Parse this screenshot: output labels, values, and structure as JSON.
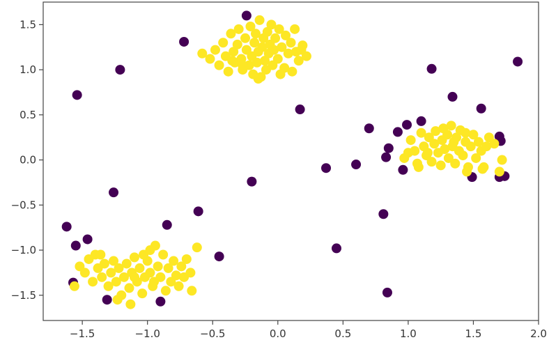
{
  "chart_data": {
    "type": "scatter",
    "title": "",
    "xlabel": "",
    "ylabel": "",
    "xlim": [
      -1.8,
      2.0
    ],
    "ylim": [
      -1.78,
      1.75
    ],
    "grid": false,
    "legend": "none",
    "x_ticks": [
      -1.5,
      -1.0,
      -0.5,
      0.0,
      0.5,
      1.0,
      1.5,
      2.0
    ],
    "x_tick_labels": [
      "−1.5",
      "−1.0",
      "−0.5",
      "0.0",
      "0.5",
      "1.0",
      "1.5",
      "2.0"
    ],
    "y_ticks": [
      1.5,
      1.0,
      0.5,
      0.0,
      -0.5,
      -1.0,
      -1.5
    ],
    "y_tick_labels": [
      "1.5",
      "1.0",
      "0.5",
      "0.0",
      "−0.5",
      "−1.0",
      "−1.5"
    ],
    "colors": {
      "class_0": "#440154",
      "class_1": "#fde725"
    },
    "series": [
      {
        "color": "#440154",
        "points": [
          [
            -0.24,
            1.6
          ],
          [
            -0.72,
            1.31
          ],
          [
            -1.21,
            1.0
          ],
          [
            -1.54,
            0.72
          ],
          [
            0.17,
            0.56
          ],
          [
            1.18,
            1.01
          ],
          [
            1.84,
            1.09
          ],
          [
            1.34,
            0.7
          ],
          [
            1.56,
            0.57
          ],
          [
            0.7,
            0.35
          ],
          [
            0.92,
            0.31
          ],
          [
            0.99,
            0.39
          ],
          [
            1.1,
            0.43
          ],
          [
            0.85,
            0.13
          ],
          [
            0.83,
            0.03
          ],
          [
            0.6,
            -0.05
          ],
          [
            0.37,
            -0.09
          ],
          [
            0.96,
            -0.11
          ],
          [
            1.49,
            -0.19
          ],
          [
            1.7,
            0.26
          ],
          [
            1.71,
            0.21
          ],
          [
            1.7,
            -0.19
          ],
          [
            1.74,
            -0.18
          ],
          [
            -0.2,
            -0.24
          ],
          [
            -1.26,
            -0.36
          ],
          [
            -0.61,
            -0.57
          ],
          [
            -0.85,
            -0.72
          ],
          [
            -1.62,
            -0.74
          ],
          [
            -1.55,
            -0.95
          ],
          [
            -1.46,
            -0.88
          ],
          [
            -0.45,
            -1.07
          ],
          [
            0.45,
            -0.98
          ],
          [
            0.81,
            -0.6
          ],
          [
            0.84,
            -1.47
          ],
          [
            -1.57,
            -1.36
          ],
          [
            -1.31,
            -1.55
          ],
          [
            -0.9,
            -1.57
          ]
        ]
      },
      {
        "color": "#fde725",
        "points": [
          [
            -0.58,
            1.18
          ],
          [
            -0.52,
            1.12
          ],
          [
            -0.48,
            1.22
          ],
          [
            -0.45,
            1.05
          ],
          [
            -0.42,
            1.3
          ],
          [
            -0.4,
            1.15
          ],
          [
            -0.38,
            0.98
          ],
          [
            -0.36,
            1.4
          ],
          [
            -0.34,
            1.2
          ],
          [
            -0.33,
            1.08
          ],
          [
            -0.31,
            1.28
          ],
          [
            -0.3,
            1.45
          ],
          [
            -0.28,
            1.12
          ],
          [
            -0.27,
            1.0
          ],
          [
            -0.25,
            1.35
          ],
          [
            -0.24,
            1.22
          ],
          [
            -0.22,
            1.05
          ],
          [
            -0.21,
            1.48
          ],
          [
            -0.2,
            1.15
          ],
          [
            -0.19,
            0.95
          ],
          [
            -0.18,
            1.3
          ],
          [
            -0.17,
            1.4
          ],
          [
            -0.16,
            1.08
          ],
          [
            -0.15,
            1.2
          ],
          [
            -0.14,
            1.55
          ],
          [
            -0.13,
            0.92
          ],
          [
            -0.12,
            1.25
          ],
          [
            -0.11,
            1.35
          ],
          [
            -0.1,
            1.1
          ],
          [
            -0.09,
            1.0
          ],
          [
            -0.08,
            1.42
          ],
          [
            -0.07,
            1.18
          ],
          [
            -0.06,
            1.28
          ],
          [
            -0.05,
            1.5
          ],
          [
            -0.04,
            1.05
          ],
          [
            -0.03,
            1.22
          ],
          [
            -0.02,
            1.35
          ],
          [
            0.0,
            1.12
          ],
          [
            0.01,
            1.45
          ],
          [
            0.03,
            1.25
          ],
          [
            0.05,
            1.02
          ],
          [
            0.06,
            1.38
          ],
          [
            0.08,
            1.18
          ],
          [
            0.1,
            1.3
          ],
          [
            0.11,
            0.98
          ],
          [
            0.14,
            1.2
          ],
          [
            0.16,
            1.1
          ],
          [
            0.19,
            1.27
          ],
          [
            0.13,
            1.45
          ],
          [
            -0.35,
            1.1
          ],
          [
            -0.27,
            1.05
          ],
          [
            -0.15,
            0.9
          ],
          [
            0.02,
            0.95
          ],
          [
            0.22,
            1.15
          ],
          [
            0.18,
            1.22
          ],
          [
            0.97,
            0.02
          ],
          [
            1.02,
            0.22
          ],
          [
            1.05,
            0.1
          ],
          [
            1.07,
            -0.04
          ],
          [
            1.1,
            0.3
          ],
          [
            1.12,
            0.15
          ],
          [
            1.14,
            0.05
          ],
          [
            1.16,
            0.25
          ],
          [
            1.18,
            -0.02
          ],
          [
            1.2,
            0.18
          ],
          [
            1.21,
            0.32
          ],
          [
            1.23,
            0.08
          ],
          [
            1.25,
            -0.06
          ],
          [
            1.26,
            0.22
          ],
          [
            1.28,
            0.12
          ],
          [
            1.3,
            0.28
          ],
          [
            1.31,
            0.02
          ],
          [
            1.33,
            0.38
          ],
          [
            1.34,
            0.15
          ],
          [
            1.36,
            -0.04
          ],
          [
            1.37,
            0.25
          ],
          [
            1.39,
            0.1
          ],
          [
            1.4,
            0.33
          ],
          [
            1.42,
            0.05
          ],
          [
            1.44,
            0.2
          ],
          [
            1.46,
            -0.08
          ],
          [
            1.48,
            0.15
          ],
          [
            1.5,
            0.28
          ],
          [
            1.52,
            0.02
          ],
          [
            1.54,
            0.2
          ],
          [
            1.56,
            0.1
          ],
          [
            1.58,
            -0.08
          ],
          [
            1.6,
            0.15
          ],
          [
            1.62,
            0.25
          ],
          [
            1.66,
            0.18
          ],
          [
            1.72,
            0.0
          ],
          [
            1.7,
            -0.13
          ],
          [
            1.57,
            -0.1
          ],
          [
            1.45,
            -0.13
          ],
          [
            1.15,
            0.08
          ],
          [
            1.08,
            -0.08
          ],
          [
            1.0,
            0.08
          ],
          [
            1.27,
            0.35
          ],
          [
            1.35,
            0.2
          ],
          [
            1.44,
            0.3
          ],
          [
            -1.52,
            -1.18
          ],
          [
            -1.48,
            -1.25
          ],
          [
            -1.45,
            -1.1
          ],
          [
            -1.42,
            -1.35
          ],
          [
            -1.4,
            -1.05
          ],
          [
            -1.38,
            -1.2
          ],
          [
            -1.35,
            -1.3
          ],
          [
            -1.33,
            -1.15
          ],
          [
            -1.3,
            -1.4
          ],
          [
            -1.28,
            -1.25
          ],
          [
            -1.26,
            -1.12
          ],
          [
            -1.24,
            -1.35
          ],
          [
            -1.22,
            -1.2
          ],
          [
            -1.2,
            -1.5
          ],
          [
            -1.18,
            -1.3
          ],
          [
            -1.16,
            -1.15
          ],
          [
            -1.14,
            -1.42
          ],
          [
            -1.12,
            -1.25
          ],
          [
            -1.1,
            -1.08
          ],
          [
            -1.08,
            -1.35
          ],
          [
            -1.06,
            -1.2
          ],
          [
            -1.04,
            -1.48
          ],
          [
            -1.02,
            -1.3
          ],
          [
            -1.0,
            -1.12
          ],
          [
            -0.98,
            -1.25
          ],
          [
            -0.96,
            -1.4
          ],
          [
            -0.94,
            -0.95
          ],
          [
            -0.92,
            -1.18
          ],
          [
            -0.9,
            -1.3
          ],
          [
            -0.88,
            -1.05
          ],
          [
            -0.86,
            -1.45
          ],
          [
            -0.84,
            -1.2
          ],
          [
            -0.82,
            -1.35
          ],
          [
            -0.8,
            -1.12
          ],
          [
            -0.78,
            -1.28
          ],
          [
            -0.76,
            -1.4
          ],
          [
            -0.74,
            -1.18
          ],
          [
            -0.72,
            -1.3
          ],
          [
            -0.7,
            -1.1
          ],
          [
            -0.67,
            -1.25
          ],
          [
            -0.62,
            -0.97
          ],
          [
            -0.66,
            -1.45
          ],
          [
            -1.56,
            -1.4
          ],
          [
            -1.23,
            -1.55
          ],
          [
            -1.13,
            -1.6
          ],
          [
            -1.36,
            -1.05
          ],
          [
            -1.03,
            -1.05
          ],
          [
            -0.98,
            -1.0
          ],
          [
            -1.1,
            -1.3
          ],
          [
            -0.95,
            -1.35
          ]
        ]
      }
    ]
  }
}
